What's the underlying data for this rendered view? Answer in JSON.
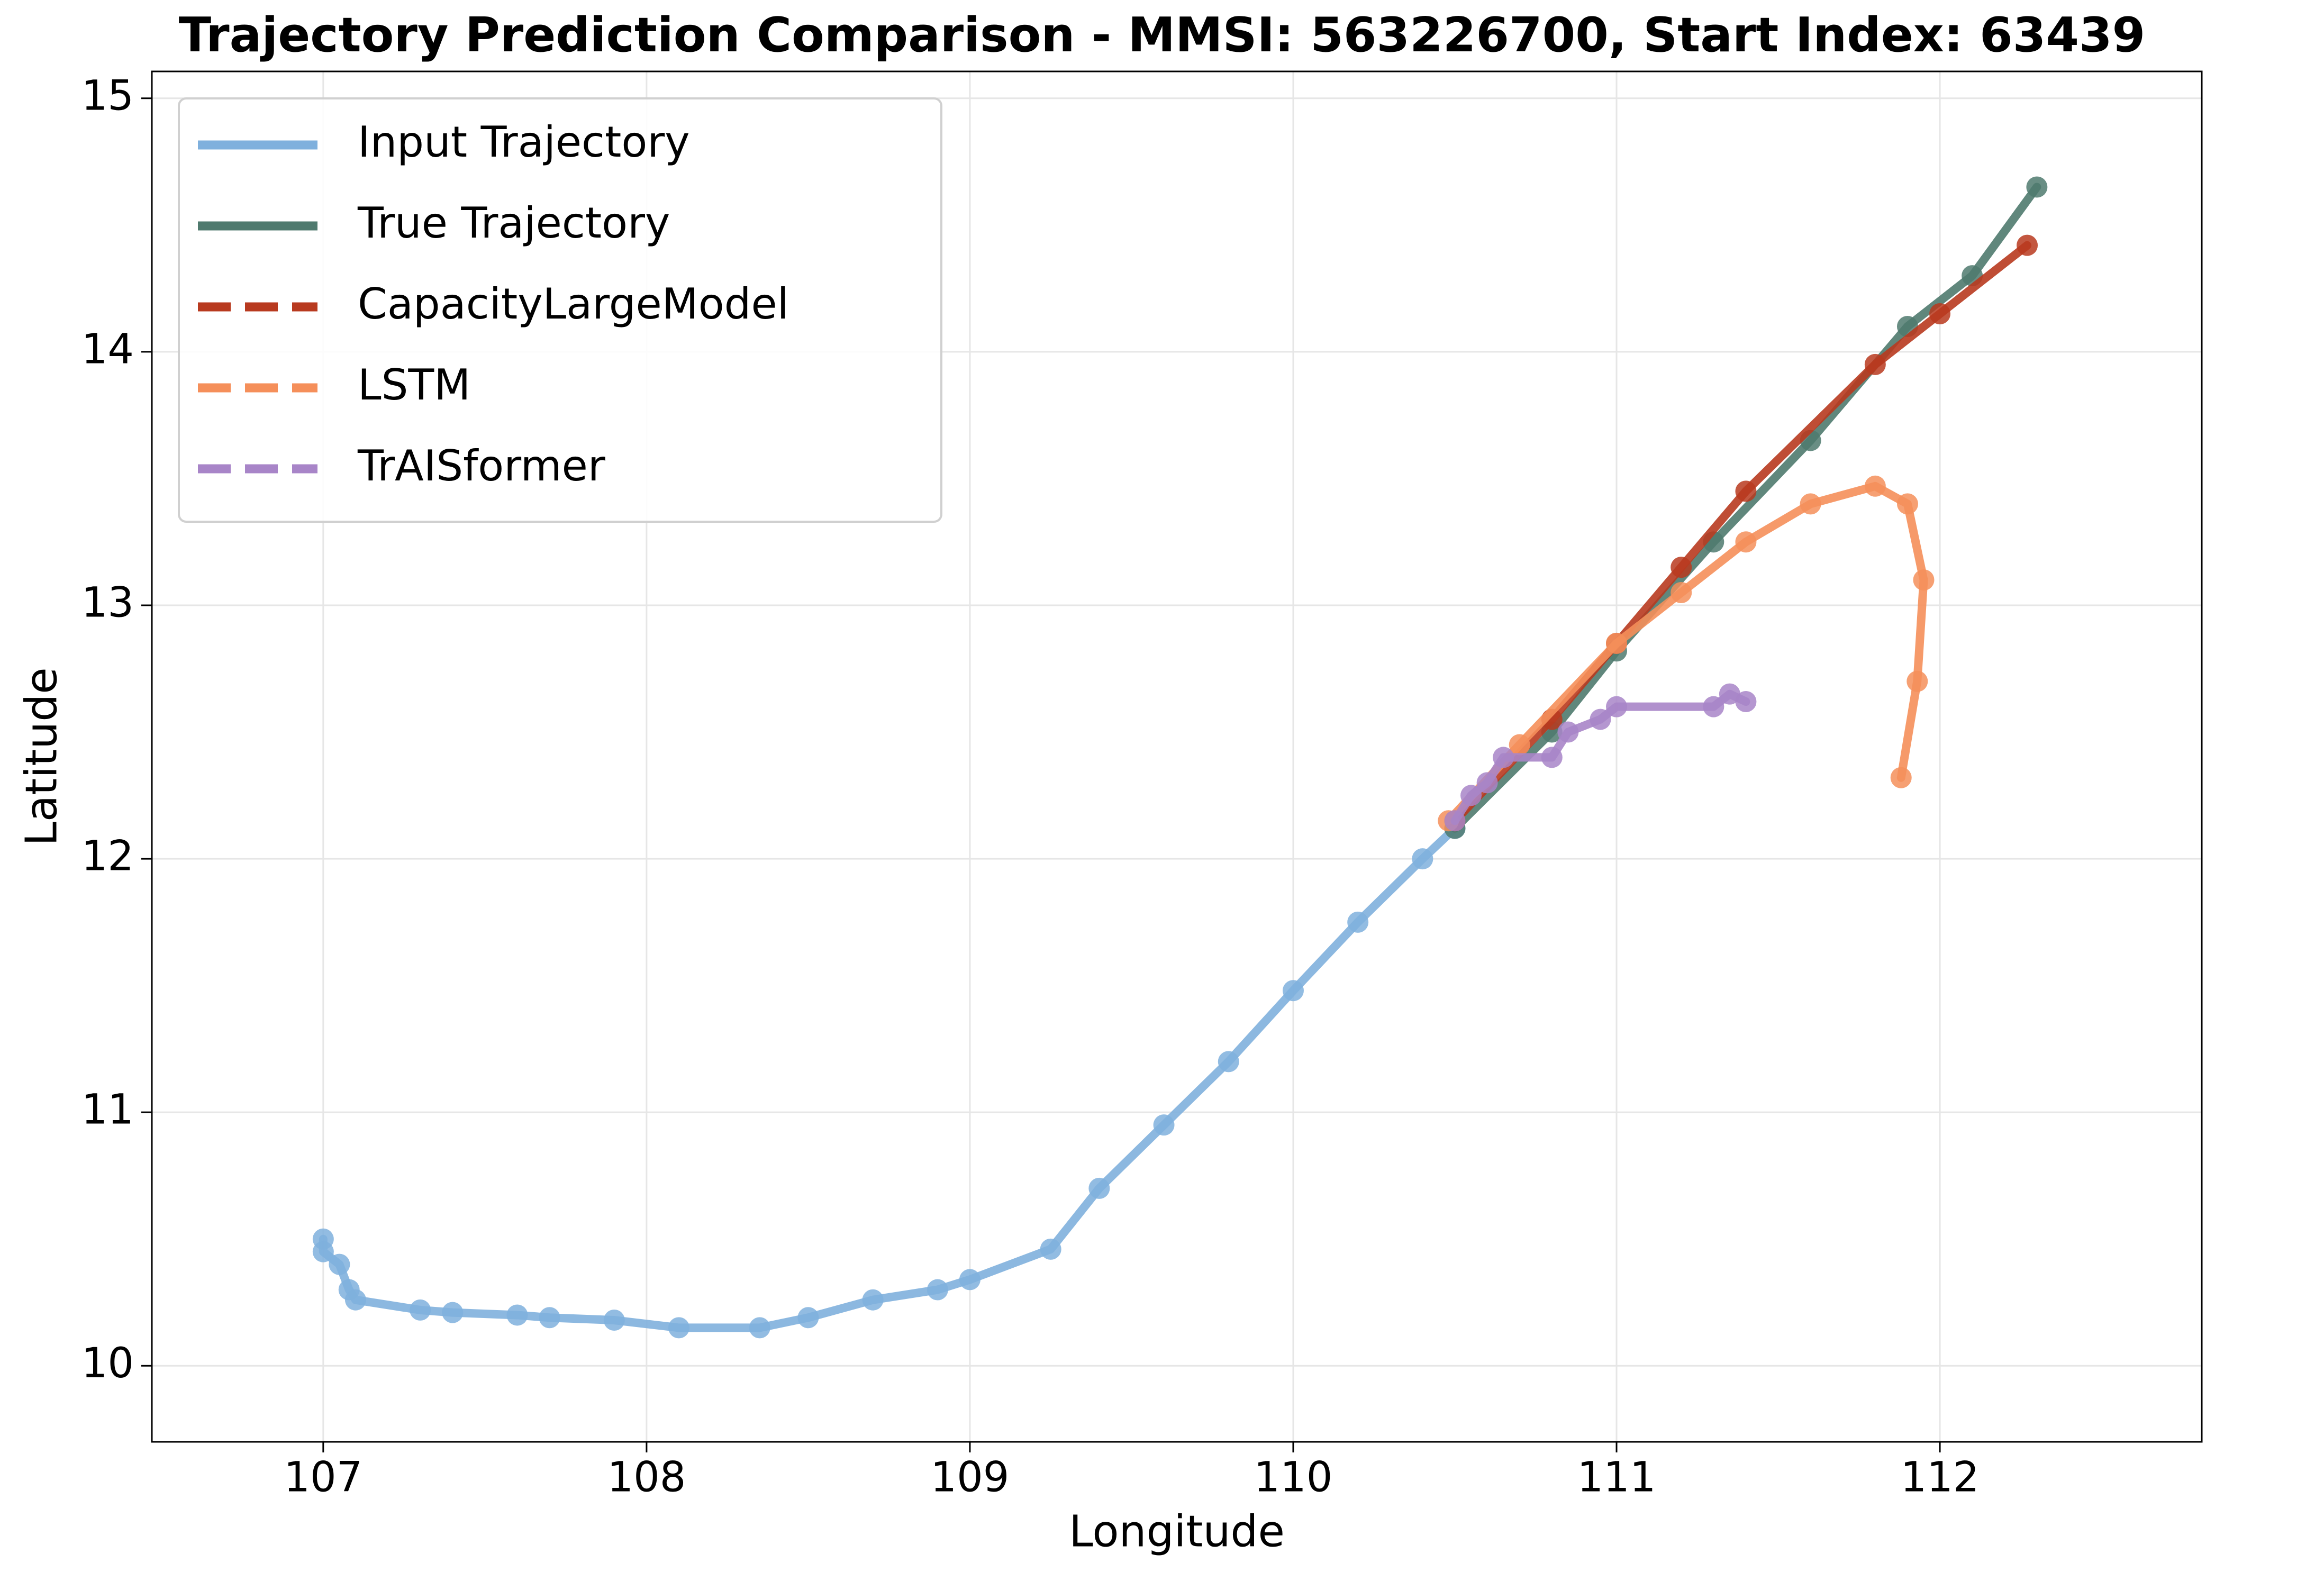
{
  "chart_data": {
    "type": "line",
    "title": "Trajectory Prediction Comparison - MMSI: 563226700, Start Index: 63439",
    "x_label": "Longitude",
    "y_label": "Latitude",
    "xlim": [
      106.47,
      112.81
    ],
    "ylim": [
      9.7,
      15.106
    ],
    "xticks": [
      107,
      108,
      109,
      110,
      111,
      112
    ],
    "yticks": [
      10,
      11,
      12,
      13,
      14,
      15
    ],
    "grid": true,
    "legend": "upper left",
    "series": [
      {
        "name": "Input Trajectory",
        "color": "#7fb0dd",
        "dashed": false,
        "x": [
          107.0,
          107.0,
          107.05,
          107.08,
          107.1,
          107.3,
          107.4,
          107.6,
          107.7,
          107.9,
          108.1,
          108.35,
          108.5,
          108.7,
          108.9,
          109.0,
          109.25,
          109.4,
          109.6,
          109.8,
          110.0,
          110.2,
          110.4,
          110.5
        ],
        "values": [
          10.5,
          10.45,
          10.4,
          10.3,
          10.26,
          10.22,
          10.21,
          10.2,
          10.19,
          10.18,
          10.15,
          10.15,
          10.19,
          10.26,
          10.3,
          10.34,
          10.46,
          10.7,
          10.95,
          11.2,
          11.48,
          11.75,
          12.0,
          12.12
        ]
      },
      {
        "name": "True Trajectory",
        "color": "#4f7a6e",
        "dashed": false,
        "x": [
          110.5,
          110.8,
          111.0,
          111.3,
          111.6,
          111.9,
          112.1,
          112.3
        ],
        "values": [
          12.12,
          12.5,
          12.82,
          13.25,
          13.65,
          14.1,
          14.3,
          14.65
        ]
      },
      {
        "name": "CapacityLargeModel",
        "color": "#b83a1f",
        "dashed": true,
        "x": [
          110.5,
          110.8,
          111.0,
          111.2,
          111.4,
          111.8,
          112.0,
          112.27
        ],
        "values": [
          12.15,
          12.55,
          12.85,
          13.15,
          13.45,
          13.95,
          14.15,
          14.42
        ]
      },
      {
        "name": "LSTM",
        "color": "#f58f5a",
        "dashed": true,
        "x": [
          110.48,
          110.7,
          111.0,
          111.2,
          111.4,
          111.6,
          111.8,
          111.9,
          111.95,
          111.93,
          111.88
        ],
        "values": [
          12.15,
          12.45,
          12.85,
          13.05,
          13.25,
          13.4,
          13.47,
          13.4,
          13.1,
          12.7,
          12.32
        ]
      },
      {
        "name": "TrAISformer",
        "color": "#a885c8",
        "dashed": true,
        "x": [
          110.5,
          110.55,
          110.6,
          110.65,
          110.8,
          110.85,
          110.95,
          111.0,
          111.3,
          111.35,
          111.4
        ],
        "values": [
          12.15,
          12.25,
          12.3,
          12.4,
          12.4,
          12.5,
          12.55,
          12.6,
          12.6,
          12.65,
          12.62
        ]
      }
    ]
  }
}
